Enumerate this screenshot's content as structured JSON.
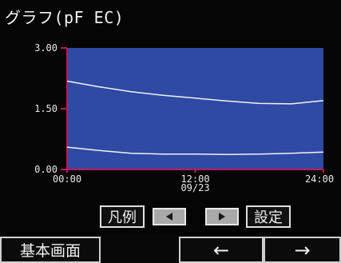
{
  "header": {
    "title": "グラフ(pF EC)"
  },
  "chart_data": {
    "type": "line",
    "ylim": [
      0.0,
      3.0
    ],
    "y_ticks": [
      "3.00",
      "1.50",
      "0.00"
    ],
    "x_ticks": [
      {
        "line1": "00:00",
        "line2": ""
      },
      {
        "line1": "12:00",
        "line2": "09/23"
      },
      {
        "line1": "24:00",
        "line2": ""
      }
    ],
    "xlim": [
      0,
      24
    ],
    "series": [
      {
        "x": [
          0,
          3,
          6,
          9,
          12,
          15,
          18,
          21,
          24
        ],
        "values": [
          2.18,
          2.04,
          1.92,
          1.83,
          1.76,
          1.69,
          1.63,
          1.62,
          1.7
        ]
      },
      {
        "x": [
          0,
          3,
          6,
          9,
          12,
          15,
          18,
          21,
          24
        ],
        "values": [
          0.55,
          0.47,
          0.4,
          0.38,
          0.38,
          0.37,
          0.38,
          0.4,
          0.43
        ]
      }
    ],
    "colors": {
      "plot_bg": "#2f4aa3",
      "line": "#f2f2f2",
      "axis": "#c2185b",
      "tick_text": "#eaeaea"
    }
  },
  "controls": {
    "legend_label": "凡例",
    "settings_label": "設定",
    "prev_icon": "triangle-left-icon",
    "next_icon": "triangle-right-icon"
  },
  "footer": {
    "home_label": "基本画面",
    "left_arrow": "←",
    "right_arrow": "→"
  }
}
